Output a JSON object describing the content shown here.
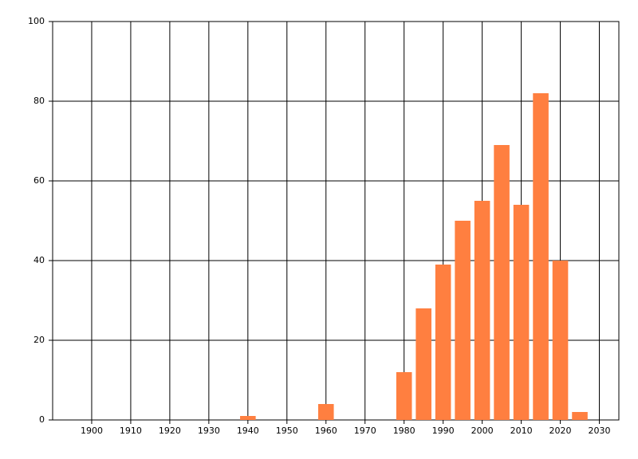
{
  "chart_data": {
    "type": "bar",
    "x": [
      1940,
      1960,
      1980,
      1985,
      1990,
      1995,
      2000,
      2005,
      2010,
      2015,
      2020,
      2025
    ],
    "values": [
      1,
      4,
      12,
      28,
      39,
      50,
      55,
      69,
      54,
      82,
      40,
      2
    ],
    "color": "#ff7f40",
    "xlim": [
      1890,
      2035
    ],
    "xticks": [
      1900,
      1910,
      1920,
      1930,
      1940,
      1950,
      1960,
      1970,
      1980,
      1990,
      2000,
      2010,
      2020,
      2030
    ],
    "ylim": [
      0,
      100
    ],
    "yticks": [
      0,
      20,
      40,
      60,
      80,
      100
    ],
    "grid": true
  }
}
